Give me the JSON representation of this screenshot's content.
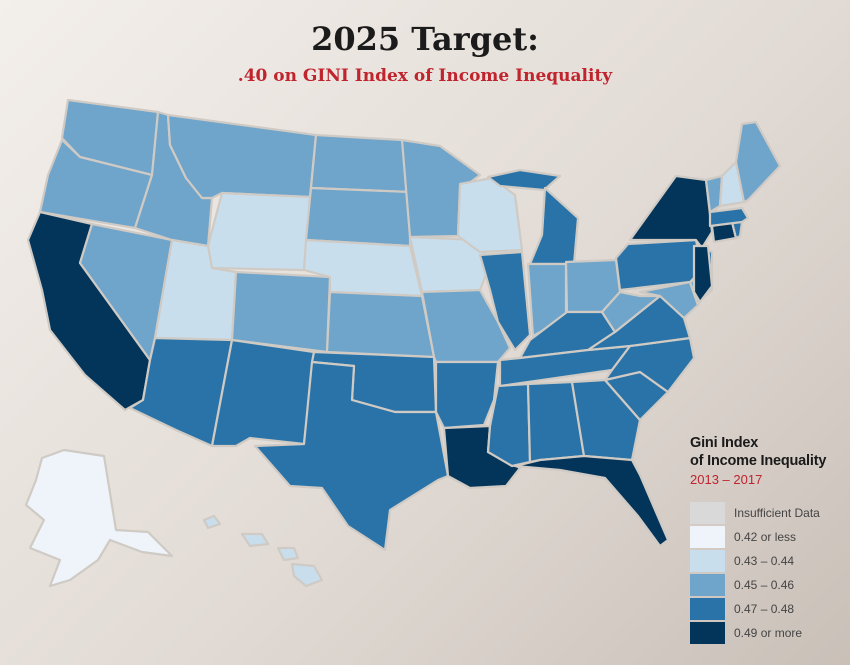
{
  "title": "2025 Target:",
  "subtitle": ".40 on GINI Index of Income Inequality",
  "legend": {
    "title_line1": "Gini Index",
    "title_line2": "of Income Inequality",
    "years": "2013 – 2017",
    "items": [
      {
        "label": "Insufficient Data",
        "color": "#d9d9d9"
      },
      {
        "label": "0.42 or less",
        "color": "#eef4f9"
      },
      {
        "label": "0.43 – 0.44",
        "color": "#c8deed"
      },
      {
        "label": "0.45 – 0.46",
        "color": "#6fa4cb"
      },
      {
        "label": "0.47 – 0.48",
        "color": "#2a73a8"
      },
      {
        "label": "0.49 or more",
        "color": "#03345a"
      }
    ]
  },
  "states": [
    {
      "name": "WA",
      "class": "0.45 – 0.46"
    },
    {
      "name": "OR",
      "class": "0.45 – 0.46"
    },
    {
      "name": "CA",
      "class": "0.49 or more"
    },
    {
      "name": "NV",
      "class": "0.45 – 0.46"
    },
    {
      "name": "ID",
      "class": "0.45 – 0.46"
    },
    {
      "name": "MT",
      "class": "0.45 – 0.46"
    },
    {
      "name": "WY",
      "class": "0.43 – 0.44"
    },
    {
      "name": "UT",
      "class": "0.43 – 0.44"
    },
    {
      "name": "AZ",
      "class": "0.47 – 0.48"
    },
    {
      "name": "CO",
      "class": "0.45 – 0.46"
    },
    {
      "name": "NM",
      "class": "0.47 – 0.48"
    },
    {
      "name": "ND",
      "class": "0.45 – 0.46"
    },
    {
      "name": "SD",
      "class": "0.45 – 0.46"
    },
    {
      "name": "NE",
      "class": "0.43 – 0.44"
    },
    {
      "name": "KS",
      "class": "0.45 – 0.46"
    },
    {
      "name": "OK",
      "class": "0.47 – 0.48"
    },
    {
      "name": "TX",
      "class": "0.47 – 0.48"
    },
    {
      "name": "MN",
      "class": "0.45 – 0.46"
    },
    {
      "name": "IA",
      "class": "0.43 – 0.44"
    },
    {
      "name": "MO",
      "class": "0.45 – 0.46"
    },
    {
      "name": "AR",
      "class": "0.47 – 0.48"
    },
    {
      "name": "LA",
      "class": "0.49 or more"
    },
    {
      "name": "WI",
      "class": "0.43 – 0.44"
    },
    {
      "name": "IL",
      "class": "0.47 – 0.48"
    },
    {
      "name": "MI",
      "class": "0.47 – 0.48"
    },
    {
      "name": "IN",
      "class": "0.45 – 0.46"
    },
    {
      "name": "OH",
      "class": "0.45 – 0.46"
    },
    {
      "name": "KY",
      "class": "0.47 – 0.48"
    },
    {
      "name": "TN",
      "class": "0.47 – 0.48"
    },
    {
      "name": "MS",
      "class": "0.47 – 0.48"
    },
    {
      "name": "AL",
      "class": "0.47 – 0.48"
    },
    {
      "name": "GA",
      "class": "0.47 – 0.48"
    },
    {
      "name": "FL",
      "class": "0.49 or more"
    },
    {
      "name": "SC",
      "class": "0.47 – 0.48"
    },
    {
      "name": "NC",
      "class": "0.47 – 0.48"
    },
    {
      "name": "VA",
      "class": "0.47 – 0.48"
    },
    {
      "name": "WV",
      "class": "0.45 – 0.46"
    },
    {
      "name": "PA",
      "class": "0.47 – 0.48"
    },
    {
      "name": "MD",
      "class": "0.45 – 0.46"
    },
    {
      "name": "DE",
      "class": "0.45 – 0.46"
    },
    {
      "name": "NJ",
      "class": "0.47 – 0.48"
    },
    {
      "name": "NY",
      "class": "0.49 or more"
    },
    {
      "name": "CT",
      "class": "0.49 or more"
    },
    {
      "name": "RI",
      "class": "0.47 – 0.48"
    },
    {
      "name": "MA",
      "class": "0.47 – 0.48"
    },
    {
      "name": "VT",
      "class": "0.45 – 0.46"
    },
    {
      "name": "NH",
      "class": "0.43 – 0.44"
    },
    {
      "name": "ME",
      "class": "0.45 – 0.46"
    },
    {
      "name": "DC",
      "class": "0.49 or more"
    },
    {
      "name": "AK",
      "class": "0.42 or less"
    },
    {
      "name": "HI",
      "class": "0.43 – 0.44"
    }
  ]
}
